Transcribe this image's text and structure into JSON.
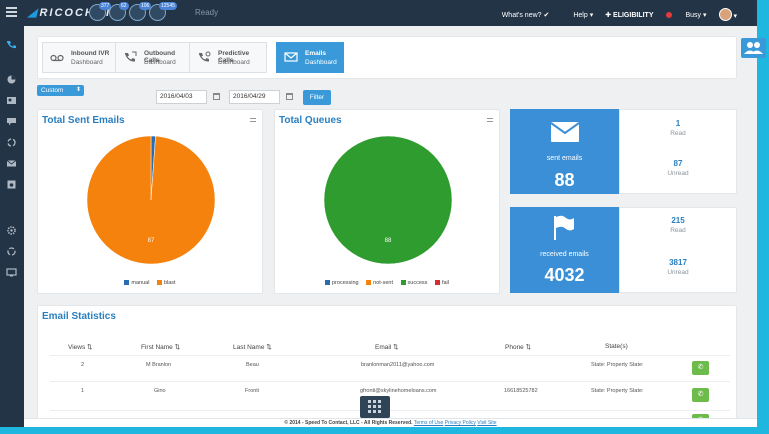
{
  "topbar": {
    "logo": "RICOCHET",
    "status": "Ready",
    "badges": [
      "377",
      "62",
      "106",
      "12545"
    ],
    "whats_new": "What's new?",
    "help": "Help",
    "eligibility": "ELIGIBILITY",
    "busy": "Busy"
  },
  "tabs": [
    {
      "title": "Inbound IVR",
      "sub": "Dashboard",
      "icon": "voicemail-icon"
    },
    {
      "title": "Outbound Calls",
      "sub": "Dashboard",
      "icon": "phone-outgoing-icon"
    },
    {
      "title": "Predictive Calls",
      "sub": "Dashboard",
      "icon": "phone-predictive-icon"
    },
    {
      "title": "Emails",
      "sub": "Dashboard",
      "icon": "envelope-icon"
    }
  ],
  "filter": {
    "range_select": "Custom",
    "date_from": "2016/04/03",
    "date_to": "2016/04/29",
    "button": "Filter"
  },
  "sent_card": {
    "title": "Total Sent Emails",
    "slice_label": "87",
    "legend": [
      "manual",
      "blast"
    ]
  },
  "queue_card": {
    "title": "Total Queues",
    "slice_label": "88",
    "legend": [
      "processing",
      "not-sent",
      "success",
      "fail"
    ]
  },
  "chart_data": [
    {
      "type": "pie",
      "title": "Total Sent Emails",
      "categories": [
        "manual",
        "blast"
      ],
      "values": [
        1,
        87
      ],
      "colors": [
        "#2b6cb0",
        "#f5820d"
      ]
    },
    {
      "type": "pie",
      "title": "Total Queues",
      "categories": [
        "processing",
        "not-sent",
        "success",
        "fail"
      ],
      "values": [
        0,
        0,
        88,
        0
      ],
      "colors": [
        "#2b6cb0",
        "#f5820d",
        "#2e9c2e",
        "#d32f2f"
      ]
    }
  ],
  "sent_stats": {
    "label": "sent emails",
    "total": "88",
    "read_num": "1",
    "read_label": "Read",
    "unread_num": "87",
    "unread_label": "Unread"
  },
  "received_stats": {
    "label": "received emails",
    "total": "4032",
    "read_num": "215",
    "read_label": "Read",
    "unread_num": "3817",
    "unread_label": "Unread"
  },
  "email_statistics": {
    "title": "Email Statistics",
    "columns": [
      "Views",
      "First Name",
      "Last Name",
      "Email",
      "Phone",
      "State(s)"
    ],
    "rows": [
      {
        "views": "2",
        "first": "M Branlon",
        "last": "Beau",
        "email": "branlonman2011@yahoo.com",
        "phone": "",
        "state": "State: Property State:"
      },
      {
        "views": "1",
        "first": "Gino",
        "last": "Fronti",
        "email": "gfronti@skylinehomeloans.com",
        "phone": "16618525782",
        "state": "State: Property State:"
      }
    ]
  },
  "footer": {
    "text": "© 2014 - Speed To Contact, LLC - All Rights Reserved.",
    "terms": "Terms of Use",
    "privacy": "Privacy Policy",
    "visit": "Visit Site"
  }
}
